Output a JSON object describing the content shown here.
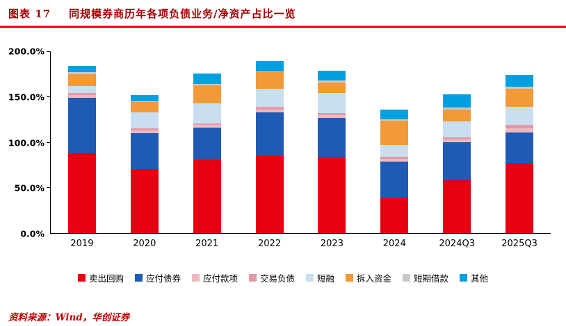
{
  "header": {
    "label": "图表 17",
    "title": "同规模券商历年各项负债业务/净资产占比一览"
  },
  "chart_data": {
    "type": "bar",
    "stacked": true,
    "title": "同规模券商历年各项负债业务/净资产占比一览",
    "categories": [
      "2019",
      "2020",
      "2021",
      "2022",
      "2023",
      "2024",
      "2024Q3",
      "2025Q3"
    ],
    "series": [
      {
        "name": "卖出回购",
        "color": "#e60012",
        "values": [
          88,
          70,
          81,
          85,
          83,
          39,
          58,
          77
        ]
      },
      {
        "name": "应付债券",
        "color": "#1f5bb5",
        "values": [
          61,
          40,
          35,
          48,
          44,
          40,
          42,
          34
        ]
      },
      {
        "name": "应付款项",
        "color": "#f0b9c0",
        "values": [
          3,
          3,
          3,
          3,
          3,
          3,
          3,
          4
        ]
      },
      {
        "name": "交易负债",
        "color": "#e29aa6",
        "values": [
          2,
          2,
          2,
          3,
          2,
          2,
          2,
          4
        ]
      },
      {
        "name": "短融",
        "color": "#c9def0",
        "values": [
          8,
          18,
          22,
          20,
          22,
          13,
          18,
          20
        ]
      },
      {
        "name": "拆入资金",
        "color": "#f29a38",
        "values": [
          13,
          11,
          20,
          18,
          12,
          27,
          13,
          20
        ]
      },
      {
        "name": "短期借款",
        "color": "#c9c9c9",
        "values": [
          2,
          1,
          1,
          1,
          2,
          1,
          2,
          2
        ]
      },
      {
        "name": "其他",
        "color": "#009fe0",
        "values": [
          7,
          7,
          12,
          11,
          11,
          11,
          15,
          13
        ]
      }
    ],
    "ylim": [
      0,
      200
    ],
    "ytick_labels": [
      "0.0%",
      "50.0%",
      "100.0%",
      "150.0%",
      "200.0%"
    ],
    "legend_position": "bottom",
    "grid": false
  },
  "footer": {
    "source": "资料来源：Wind，华创证券"
  }
}
